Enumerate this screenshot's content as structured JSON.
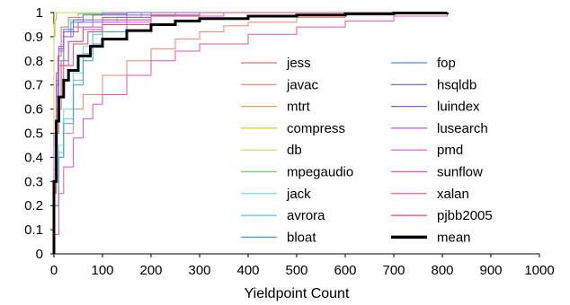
{
  "chart_data": {
    "type": "line",
    "title": "",
    "xlabel": "Yieldpoint Count",
    "ylabel": "",
    "xlim": [
      0,
      1000
    ],
    "ylim": [
      0,
      1
    ],
    "xticks": [
      0,
      100,
      200,
      300,
      400,
      500,
      600,
      700,
      800,
      900,
      1000
    ],
    "yticks": [
      0,
      0.1,
      0.2,
      0.3,
      0.4,
      0.5,
      0.6,
      0.7,
      0.8,
      0.9,
      1
    ],
    "grid": false,
    "legend_position": "center-right",
    "series": [
      {
        "name": "jess",
        "color": "#e46d6d",
        "width": 1,
        "points": [
          [
            0,
            0.25
          ],
          [
            3,
            0.55
          ],
          [
            8,
            0.82
          ],
          [
            15,
            0.94
          ],
          [
            30,
            0.98
          ],
          [
            60,
            0.995
          ],
          [
            150,
            1.0
          ],
          [
            810,
            1.0
          ]
        ]
      },
      {
        "name": "javac",
        "color": "#e8886e",
        "width": 1,
        "points": [
          [
            0,
            0.2
          ],
          [
            10,
            0.4
          ],
          [
            20,
            0.5
          ],
          [
            40,
            0.6
          ],
          [
            60,
            0.66
          ],
          [
            100,
            0.74
          ],
          [
            150,
            0.8
          ],
          [
            200,
            0.85
          ],
          [
            250,
            0.89
          ],
          [
            300,
            0.92
          ],
          [
            350,
            0.945
          ],
          [
            400,
            0.96
          ],
          [
            500,
            0.98
          ],
          [
            600,
            0.99
          ],
          [
            700,
            0.997
          ],
          [
            810,
            1.0
          ]
        ]
      },
      {
        "name": "mtrt",
        "color": "#e7a24d",
        "width": 1,
        "points": [
          [
            0,
            0.9
          ],
          [
            2,
            0.97
          ],
          [
            5,
            1.0
          ],
          [
            810,
            1.0
          ]
        ]
      },
      {
        "name": "compress",
        "color": "#e5c632",
        "width": 1,
        "points": [
          [
            0,
            0.95
          ],
          [
            1,
            1.0
          ],
          [
            810,
            1.0
          ]
        ]
      },
      {
        "name": "db",
        "color": "#c8d85a",
        "width": 1,
        "points": [
          [
            0,
            0.93
          ],
          [
            1,
            1.0
          ],
          [
            810,
            1.0
          ]
        ]
      },
      {
        "name": "mpegaudio",
        "color": "#6cd26c",
        "width": 1,
        "points": [
          [
            0,
            0.35
          ],
          [
            5,
            0.6
          ],
          [
            10,
            0.8
          ],
          [
            20,
            0.92
          ],
          [
            30,
            0.97
          ],
          [
            50,
            0.995
          ],
          [
            100,
            1.0
          ],
          [
            810,
            1.0
          ]
        ]
      },
      {
        "name": "jack",
        "color": "#6ee0bd",
        "width": 1,
        "points": [
          [
            0,
            0.2
          ],
          [
            10,
            0.45
          ],
          [
            20,
            0.6
          ],
          [
            40,
            0.75
          ],
          [
            60,
            0.86
          ],
          [
            80,
            0.93
          ],
          [
            100,
            0.97
          ],
          [
            150,
            0.99
          ],
          [
            200,
            1.0
          ],
          [
            810,
            1.0
          ]
        ]
      },
      {
        "name": "avrora",
        "color": "#5ec1ea",
        "width": 1,
        "points": [
          [
            0,
            0.2
          ],
          [
            10,
            0.42
          ],
          [
            20,
            0.56
          ],
          [
            40,
            0.72
          ],
          [
            60,
            0.83
          ],
          [
            80,
            0.91
          ],
          [
            100,
            0.96
          ],
          [
            130,
            0.98
          ],
          [
            180,
            1.0
          ],
          [
            810,
            1.0
          ]
        ]
      },
      {
        "name": "bloat",
        "color": "#3f9ed6",
        "width": 1,
        "points": [
          [
            0,
            0.2
          ],
          [
            10,
            0.4
          ],
          [
            20,
            0.54
          ],
          [
            40,
            0.7
          ],
          [
            60,
            0.8
          ],
          [
            80,
            0.87
          ],
          [
            100,
            0.92
          ],
          [
            150,
            0.97
          ],
          [
            200,
            0.99
          ],
          [
            250,
            1.0
          ],
          [
            810,
            1.0
          ]
        ]
      },
      {
        "name": "fop",
        "color": "#4d8fe6",
        "width": 1,
        "points": [
          [
            0,
            0.3
          ],
          [
            5,
            0.6
          ],
          [
            10,
            0.78
          ],
          [
            20,
            0.9
          ],
          [
            35,
            0.96
          ],
          [
            60,
            0.99
          ],
          [
            100,
            1.0
          ],
          [
            810,
            1.0
          ]
        ]
      },
      {
        "name": "hsqldb",
        "color": "#5a63d8",
        "width": 1,
        "points": [
          [
            0,
            0.4
          ],
          [
            5,
            0.7
          ],
          [
            10,
            0.85
          ],
          [
            20,
            0.93
          ],
          [
            40,
            0.97
          ],
          [
            80,
            0.99
          ],
          [
            150,
            1.0
          ],
          [
            810,
            1.0
          ]
        ]
      },
      {
        "name": "luindex",
        "color": "#8c58e0",
        "width": 1,
        "points": [
          [
            0,
            0.5
          ],
          [
            5,
            0.75
          ],
          [
            10,
            0.86
          ],
          [
            20,
            0.92
          ],
          [
            50,
            0.96
          ],
          [
            100,
            0.98
          ],
          [
            200,
            1.0
          ],
          [
            810,
            1.0
          ]
        ]
      },
      {
        "name": "lusearch",
        "color": "#b35fdb",
        "width": 1,
        "points": [
          [
            0,
            0.45
          ],
          [
            5,
            0.72
          ],
          [
            10,
            0.84
          ],
          [
            20,
            0.9
          ],
          [
            40,
            0.94
          ],
          [
            80,
            0.97
          ],
          [
            150,
            0.99
          ],
          [
            300,
            1.0
          ],
          [
            810,
            1.0
          ]
        ]
      },
      {
        "name": "pmd",
        "color": "#d955cf",
        "width": 1,
        "points": [
          [
            0,
            0.4
          ],
          [
            5,
            0.65
          ],
          [
            15,
            0.8
          ],
          [
            30,
            0.88
          ],
          [
            60,
            0.93
          ],
          [
            100,
            0.96
          ],
          [
            200,
            0.985
          ],
          [
            350,
            1.0
          ],
          [
            810,
            1.0
          ]
        ]
      },
      {
        "name": "sunflow",
        "color": "#e055b4",
        "width": 1,
        "points": [
          [
            0,
            0.08
          ],
          [
            10,
            0.25
          ],
          [
            20,
            0.36
          ],
          [
            40,
            0.48
          ],
          [
            60,
            0.56
          ],
          [
            80,
            0.62
          ],
          [
            100,
            0.66
          ],
          [
            150,
            0.74
          ],
          [
            200,
            0.8
          ],
          [
            250,
            0.84
          ],
          [
            300,
            0.87
          ],
          [
            400,
            0.91
          ],
          [
            500,
            0.94
          ],
          [
            600,
            0.965
          ],
          [
            700,
            0.985
          ],
          [
            810,
            1.0
          ]
        ]
      },
      {
        "name": "xalan",
        "color": "#e2568c",
        "width": 1,
        "points": [
          [
            0,
            0.35
          ],
          [
            5,
            0.6
          ],
          [
            15,
            0.78
          ],
          [
            30,
            0.88
          ],
          [
            60,
            0.94
          ],
          [
            100,
            0.97
          ],
          [
            200,
            0.99
          ],
          [
            300,
            1.0
          ],
          [
            810,
            1.0
          ]
        ]
      },
      {
        "name": "pjbb2005",
        "color": "#dc4e6b",
        "width": 1,
        "points": [
          [
            0,
            0.25
          ],
          [
            5,
            0.5
          ],
          [
            10,
            0.65
          ],
          [
            20,
            0.78
          ],
          [
            40,
            0.87
          ],
          [
            70,
            0.92
          ],
          [
            100,
            0.95
          ],
          [
            200,
            0.985
          ],
          [
            300,
            1.0
          ],
          [
            810,
            1.0
          ]
        ]
      },
      {
        "name": "mean",
        "color": "#000000",
        "width": 3,
        "points": [
          [
            0,
            0.3
          ],
          [
            5,
            0.55
          ],
          [
            10,
            0.65
          ],
          [
            20,
            0.72
          ],
          [
            30,
            0.76
          ],
          [
            50,
            0.82
          ],
          [
            75,
            0.86
          ],
          [
            100,
            0.89
          ],
          [
            150,
            0.925
          ],
          [
            200,
            0.95
          ],
          [
            250,
            0.965
          ],
          [
            300,
            0.975
          ],
          [
            400,
            0.985
          ],
          [
            500,
            0.99
          ],
          [
            600,
            0.995
          ],
          [
            700,
            0.998
          ],
          [
            810,
            1.0
          ]
        ]
      }
    ]
  }
}
